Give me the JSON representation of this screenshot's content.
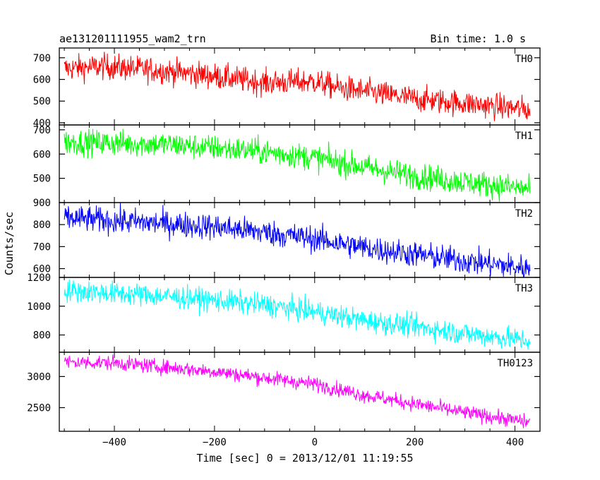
{
  "header": {
    "left_title": "ae131201111955_wam2_trn",
    "right_title": "Bin time: 1.0 s"
  },
  "chart_data": {
    "type": "line",
    "xlabel": "Time [sec] 0 = 2013/12/01 11:19:55",
    "ylabel": "Counts/sec",
    "xlim": [
      -510,
      450
    ],
    "xticks": [
      -400,
      -200,
      0,
      200,
      400
    ],
    "x_range": [
      -500,
      430
    ],
    "panels": [
      {
        "name": "TH0",
        "color": "#ff0000",
        "ylim": [
          390,
          745
        ],
        "yticks": [
          400,
          500,
          600,
          700
        ],
        "trend": [
          [
            -500,
            650
          ],
          [
            -420,
            660
          ],
          [
            -300,
            640
          ],
          [
            -200,
            615
          ],
          [
            -100,
            585
          ],
          [
            0,
            590
          ],
          [
            50,
            560
          ],
          [
            100,
            545
          ],
          [
            200,
            510
          ],
          [
            300,
            490
          ],
          [
            430,
            460
          ]
        ],
        "noise": 30
      },
      {
        "name": "TH1",
        "color": "#00ff00",
        "ylim": [
          400,
          720
        ],
        "yticks": [
          500,
          600,
          700
        ],
        "trend": [
          [
            -500,
            650
          ],
          [
            -300,
            640
          ],
          [
            -200,
            625
          ],
          [
            -100,
            610
          ],
          [
            0,
            585
          ],
          [
            100,
            545
          ],
          [
            200,
            510
          ],
          [
            300,
            485
          ],
          [
            430,
            455
          ]
        ],
        "noise": 27
      },
      {
        "name": "TH2",
        "color": "#0000ff",
        "ylim": [
          560,
          900
        ],
        "yticks": [
          600,
          700,
          800,
          900
        ],
        "trend": [
          [
            -500,
            830
          ],
          [
            -300,
            805
          ],
          [
            -200,
            790
          ],
          [
            -100,
            765
          ],
          [
            0,
            735
          ],
          [
            100,
            695
          ],
          [
            200,
            665
          ],
          [
            300,
            635
          ],
          [
            430,
            600
          ]
        ],
        "noise": 30
      },
      {
        "name": "TH3",
        "color": "#00ffff",
        "ylim": [
          680,
          1200
        ],
        "yticks": [
          800,
          1000,
          1200
        ],
        "trend": [
          [
            -500,
            1110
          ],
          [
            -300,
            1070
          ],
          [
            -200,
            1040
          ],
          [
            -100,
            1010
          ],
          [
            0,
            960
          ],
          [
            100,
            900
          ],
          [
            200,
            860
          ],
          [
            300,
            810
          ],
          [
            430,
            760
          ]
        ],
        "noise": 40
      },
      {
        "name": "TH0123",
        "color": "#ff00ff",
        "ylim": [
          2120,
          3390
        ],
        "yticks": [
          2500,
          3000
        ],
        "trend": [
          [
            -500,
            3230
          ],
          [
            -400,
            3220
          ],
          [
            -300,
            3150
          ],
          [
            -200,
            3080
          ],
          [
            -100,
            2980
          ],
          [
            0,
            2880
          ],
          [
            100,
            2700
          ],
          [
            200,
            2560
          ],
          [
            300,
            2420
          ],
          [
            430,
            2260
          ]
        ],
        "noise": 60
      }
    ]
  }
}
